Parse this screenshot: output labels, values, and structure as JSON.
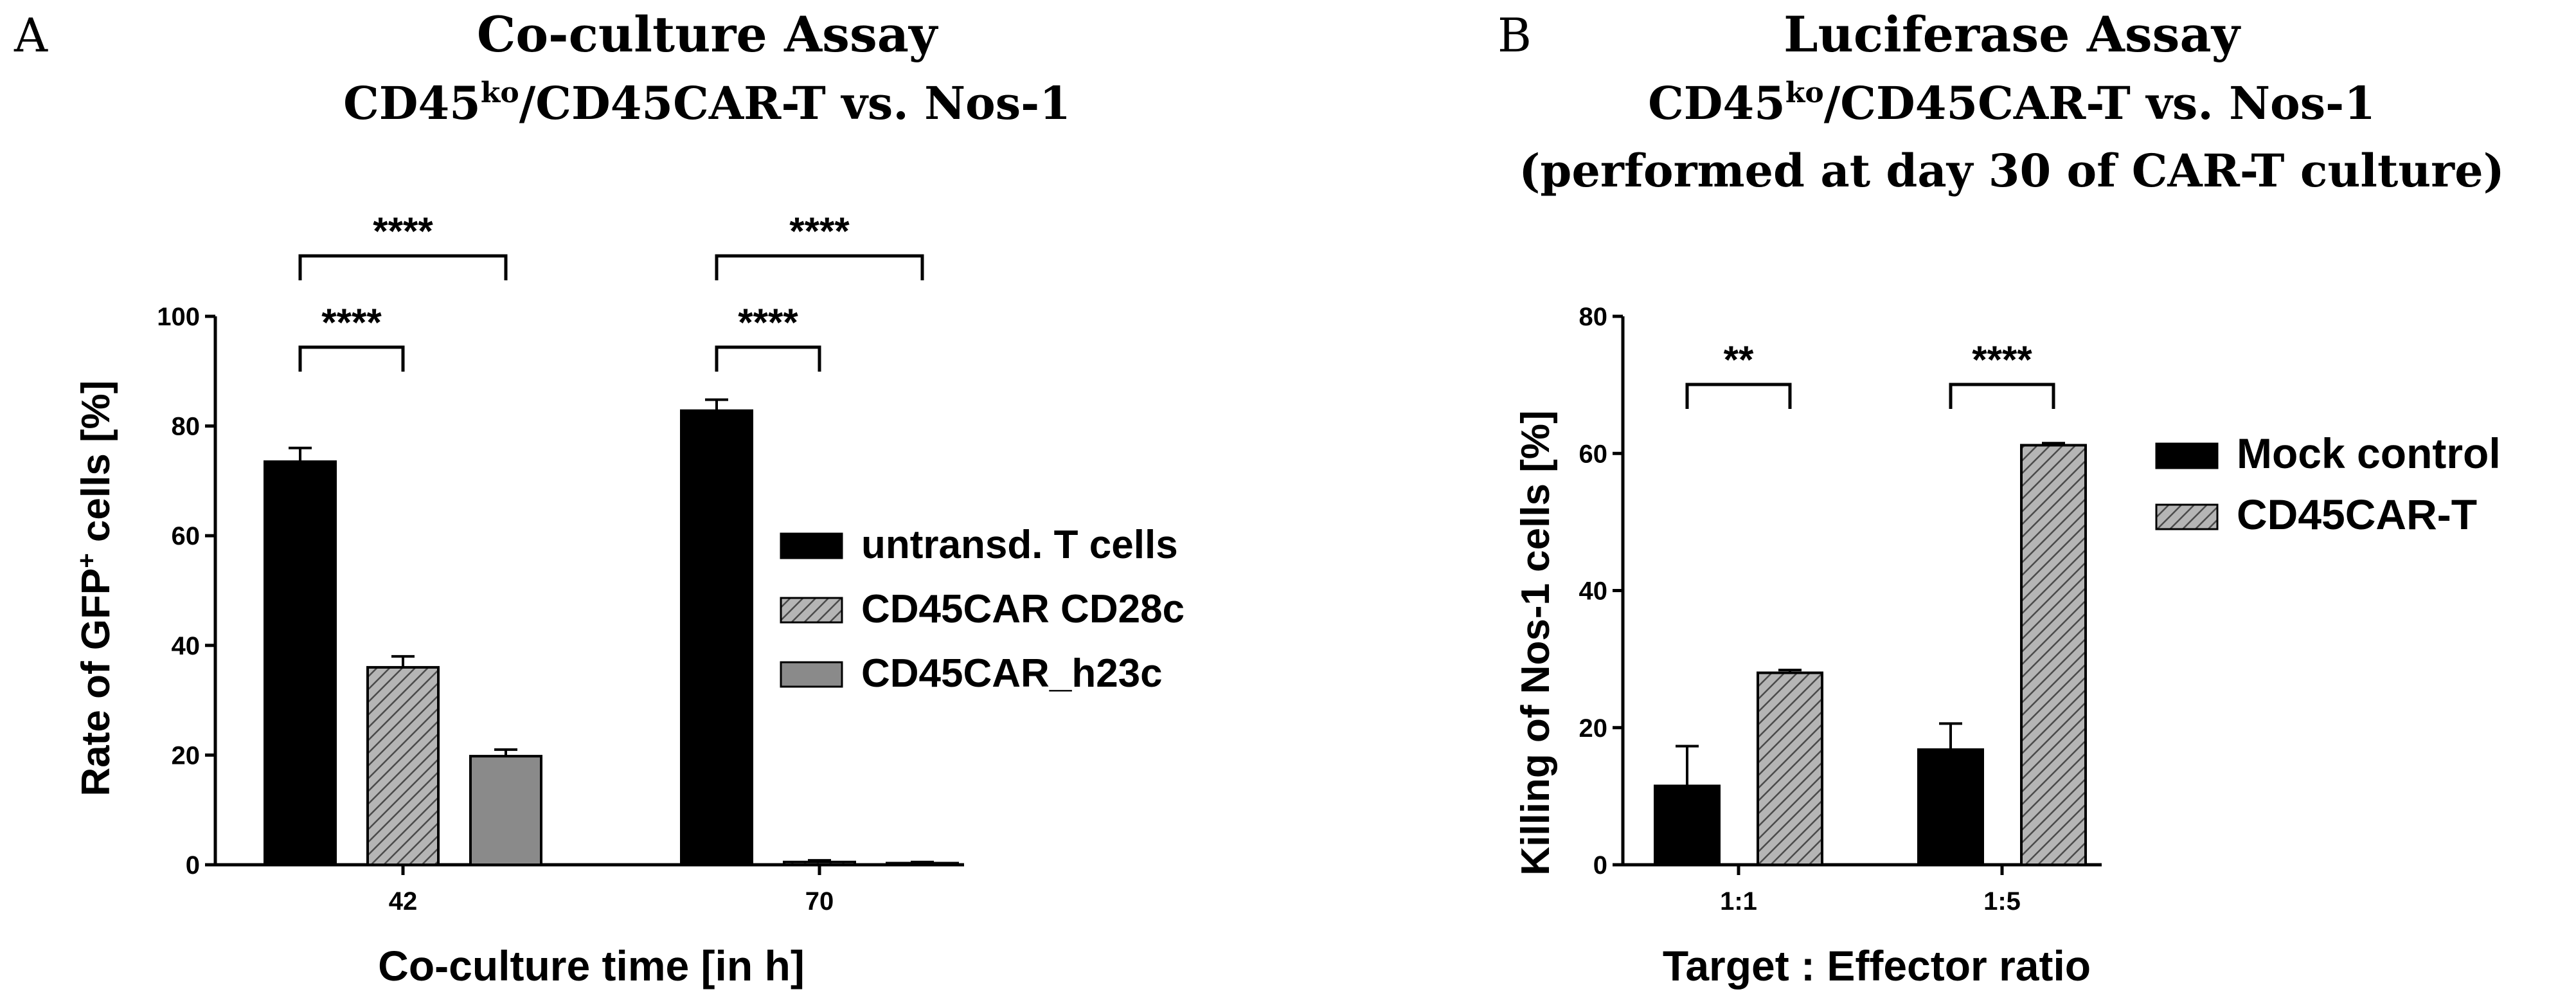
{
  "chart_data": [
    {
      "type": "bar",
      "panel_label": "A",
      "title": "Co-culture Assay",
      "subtitle_parts": {
        "prefix": "CD45",
        "superscript": "ko",
        "suffix": "/CD45CAR-T vs. Nos-1"
      },
      "xlabel": "Co-culture time [in h]",
      "ylabel_parts": {
        "prefix": "Rate of GFP",
        "superscript": "+",
        "suffix": " cells [%]"
      },
      "ylim": [
        0,
        100
      ],
      "yticks": [
        0,
        20,
        40,
        60,
        80,
        100
      ],
      "categories": [
        "42",
        "70"
      ],
      "legend_position": "right",
      "series": [
        {
          "name": "untransd. T cells",
          "values": [
            73.5,
            82.8
          ],
          "errors": [
            2.5,
            2.0
          ],
          "color": "#000000",
          "pattern": "solid"
        },
        {
          "name": "CD45CAR  CD28c",
          "values": [
            36.0,
            0.5
          ],
          "errors": [
            2.0,
            0.3
          ],
          "color": "#8a8a8a",
          "pattern": "hatched"
        },
        {
          "name": "CD45CAR_h23c",
          "values": [
            19.8,
            0.3
          ],
          "errors": [
            1.2,
            0.2
          ],
          "color": "#8a8a8a",
          "pattern": "solid"
        }
      ],
      "significance": [
        {
          "category": "42",
          "from_series": 0,
          "to_series": 1,
          "label": "****",
          "level": 1
        },
        {
          "category": "42",
          "from_series": 0,
          "to_series": 2,
          "label": "****",
          "level": 2
        },
        {
          "category": "70",
          "from_series": 0,
          "to_series": 1,
          "label": "****",
          "level": 1
        },
        {
          "category": "70",
          "from_series": 0,
          "to_series": 2,
          "label": "****",
          "level": 2
        }
      ]
    },
    {
      "type": "bar",
      "panel_label": "B",
      "title": "Luciferase Assay",
      "subtitle_parts": {
        "prefix": "CD45",
        "superscript": "ko",
        "suffix": "/CD45CAR-T vs. Nos-1"
      },
      "subtitle2": "(performed at day 30 of CAR-T culture)",
      "xlabel": "Target : Effector ratio",
      "ylabel": "Killing of Nos-1 cells [%]",
      "ylim": [
        0,
        80
      ],
      "yticks": [
        0,
        20,
        40,
        60,
        80
      ],
      "categories": [
        "1:1",
        "1:5"
      ],
      "legend_position": "right",
      "series": [
        {
          "name": "Mock control",
          "values": [
            11.5,
            16.8
          ],
          "errors": [
            5.8,
            3.8
          ],
          "color": "#000000",
          "pattern": "solid"
        },
        {
          "name": "CD45CAR-T",
          "values": [
            28.0,
            61.2
          ],
          "errors": [
            0.4,
            0.3
          ],
          "color": "#8a8a8a",
          "pattern": "hatched"
        }
      ],
      "significance": [
        {
          "category": "1:1",
          "from_series": 0,
          "to_series": 1,
          "label": "**",
          "level": 1
        },
        {
          "category": "1:5",
          "from_series": 0,
          "to_series": 1,
          "label": "****",
          "level": 1
        }
      ]
    }
  ]
}
